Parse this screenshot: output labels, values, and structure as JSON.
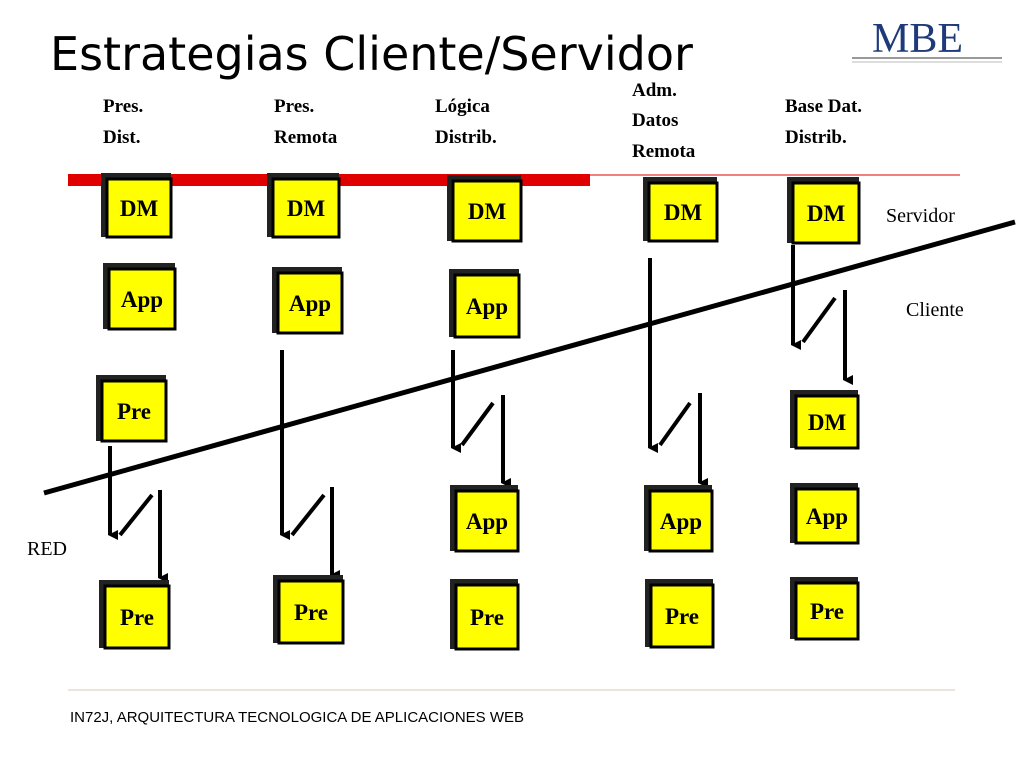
{
  "header": {
    "title": "Estrategias Cliente/Servidor",
    "logo": "MBE"
  },
  "columns": [
    {
      "label": [
        "Pres.",
        "Dist."
      ],
      "boxes": [
        "DM",
        "App",
        "Pre",
        "Pre"
      ]
    },
    {
      "label": [
        "Pres.",
        "Remota"
      ],
      "boxes": [
        "DM",
        "App",
        "Pre"
      ]
    },
    {
      "label": [
        "Lógica",
        "Distrib."
      ],
      "boxes": [
        "DM",
        "App",
        "App",
        "Pre"
      ]
    },
    {
      "label": [
        "Adm.",
        "Datos",
        "Remota"
      ],
      "boxes": [
        "DM",
        "App",
        "Pre"
      ]
    },
    {
      "label": [
        "Base Dat.",
        "Distrib."
      ],
      "boxes": [
        "DM",
        "DM",
        "App",
        "Pre"
      ]
    }
  ],
  "labels": {
    "server": "Servidor",
    "client": "Cliente",
    "network": "RED"
  },
  "footer": "IN72J, ARQUITECTURA TECNOLOGICA DE APLICACIONES WEB"
}
